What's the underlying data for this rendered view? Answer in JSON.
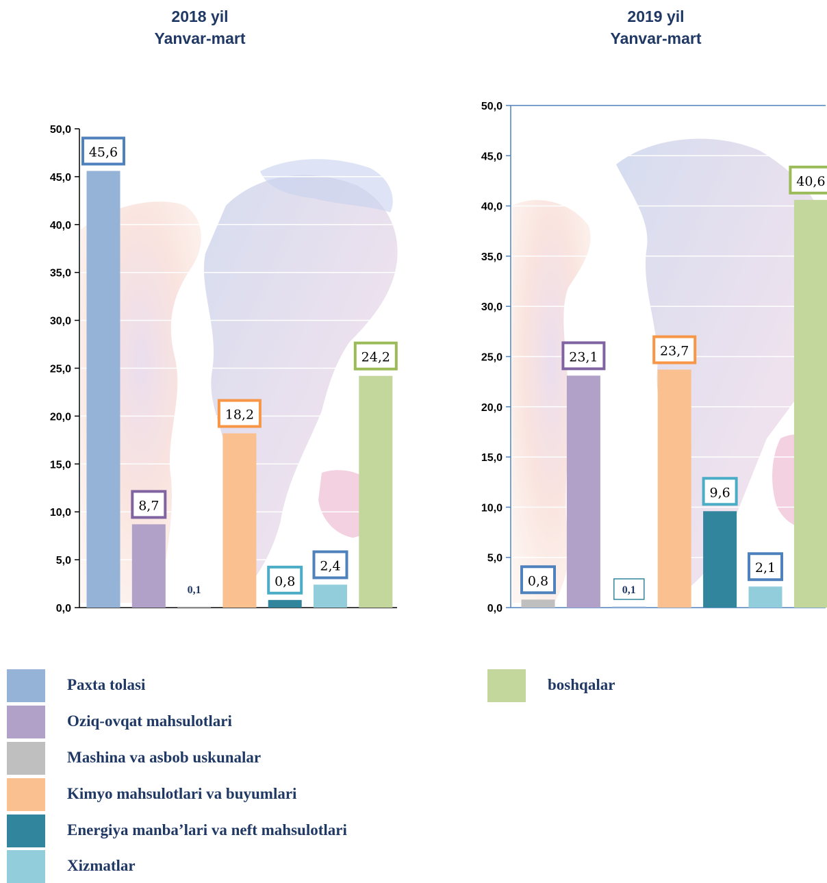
{
  "chart_data": [
    {
      "type": "bar",
      "title": "2018 yil",
      "subtitle": "Yanvar-mart",
      "categories": [
        "Paxta tolasi",
        "Oziq-ovqat mahsulotlari",
        "Mashina va asbob uskunalar",
        "Kimyo mahsulotlari va buyumlari",
        "Energiya manba’lari va neft mahsulotlari",
        "Xizmatlar",
        "boshqalar"
      ],
      "values": [
        45.6,
        8.7,
        0.1,
        18.2,
        0.8,
        2.4,
        24.2
      ],
      "data_labels": [
        "45,6",
        "8,7",
        "0,1",
        "18,2",
        "0,8",
        "2,4",
        "24,2"
      ],
      "colors": [
        "#95b3d7",
        "#b1a0c7",
        "#bfbfbf",
        "#fac090",
        "#31859c",
        "#92cddc",
        "#c3d69b"
      ],
      "label_border_colors": [
        "#4f81bd",
        "#8064a2",
        null,
        "#f79646",
        "#4bacc6",
        "#4f81bd",
        "#9bbb59"
      ],
      "ylim": [
        0,
        50
      ],
      "yticks": [
        "0,0",
        "5,0",
        "10,0",
        "15,0",
        "20,0",
        "25,0",
        "30,0",
        "35,0",
        "40,0",
        "45,0",
        "50,0"
      ],
      "xlabel": "",
      "ylabel": ""
    },
    {
      "type": "bar",
      "title": "2019 yil",
      "subtitle": "Yanvar-mart",
      "categories": [
        "Mashina va asbob uskunalar",
        "Oziq-ovqat mahsulotlari",
        "Paxta tolasi",
        "Kimyo mahsulotlari va buyumlari",
        "Energiya manba’lari va neft mahsulotlari",
        "Xizmatlar",
        "boshqalar"
      ],
      "values": [
        0.8,
        23.1,
        0.1,
        23.7,
        9.6,
        2.1,
        40.6
      ],
      "data_labels": [
        "0,8",
        "23,1",
        "0,1",
        "23,7",
        "9,6",
        "2,1",
        "40,6"
      ],
      "colors": [
        "#bfbfbf",
        "#b1a0c7",
        "#95b3d7",
        "#fac090",
        "#31859c",
        "#92cddc",
        "#c3d69b"
      ],
      "label_border_colors": [
        "#4f81bd",
        "#8064a2",
        "#31859c",
        "#f79646",
        "#4bacc6",
        "#4f81bd",
        "#9bbb59"
      ],
      "ylim": [
        0,
        50
      ],
      "yticks": [
        "0,0",
        "5,0",
        "10,0",
        "15,0",
        "20,0",
        "25,0",
        "30,0",
        "35,0",
        "40,0",
        "45,0",
        "50,0"
      ],
      "xlabel": "",
      "ylabel": ""
    }
  ],
  "legend": [
    {
      "label": "Paxta tolasi",
      "color": "#95b3d7"
    },
    {
      "label": "Oziq-ovqat mahsulotlari",
      "color": "#b1a0c7"
    },
    {
      "label": "Mashina va asbob uskunalar",
      "color": "#bfbfbf"
    },
    {
      "label": "Kimyo mahsulotlari va buyumlari",
      "color": "#fac090"
    },
    {
      "label": "Energiya manba’lari va neft mahsulotlari",
      "color": "#31859c"
    },
    {
      "label": "Xizmatlar",
      "color": "#92cddc"
    },
    {
      "label": "boshqalar",
      "color": "#c3d69b"
    }
  ]
}
